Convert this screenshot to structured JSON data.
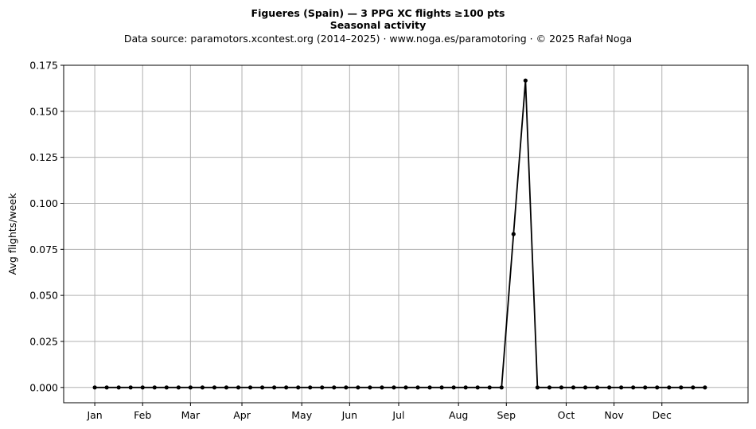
{
  "header": {
    "title": "Figueres (Spain)  —  3 PPG XC flights ≥100 pts",
    "subtitle": "Seasonal activity",
    "source": "Data source: paramotors.xcontest.org (2014–2025)  ·  www.noga.es/paramotoring  ·  © 2025 Rafał Noga"
  },
  "chart_data": {
    "type": "line",
    "title": "Figueres (Spain)  —  3 PPG XC flights ≥100 pts",
    "subtitle": "Seasonal activity",
    "xlabel": "",
    "ylabel": "Avg flights/week",
    "x_unit": "week of year",
    "x": [
      1,
      2,
      3,
      4,
      5,
      6,
      7,
      8,
      9,
      10,
      11,
      12,
      13,
      14,
      15,
      16,
      17,
      18,
      19,
      20,
      21,
      22,
      23,
      24,
      25,
      26,
      27,
      28,
      29,
      30,
      31,
      32,
      33,
      34,
      35,
      36,
      37,
      38,
      39,
      40,
      41,
      42,
      43,
      44,
      45,
      46,
      47,
      48,
      49,
      50,
      51,
      52
    ],
    "values": [
      0,
      0,
      0,
      0,
      0,
      0,
      0,
      0,
      0,
      0,
      0,
      0,
      0,
      0,
      0,
      0,
      0,
      0,
      0,
      0,
      0,
      0,
      0,
      0,
      0,
      0,
      0,
      0,
      0,
      0,
      0,
      0,
      0,
      0,
      0,
      0.0833,
      0.1667,
      0,
      0,
      0,
      0,
      0,
      0,
      0,
      0,
      0,
      0,
      0,
      0,
      0,
      0,
      0
    ],
    "xlim": [
      -1.6,
      55.6
    ],
    "ylim": [
      -0.0083,
      0.175
    ],
    "x_ticks": [
      {
        "week": 1,
        "label": "Jan"
      },
      {
        "week": 5,
        "label": "Feb"
      },
      {
        "week": 9,
        "label": "Mar"
      },
      {
        "week": 13.3,
        "label": "Apr"
      },
      {
        "week": 18.3,
        "label": "May"
      },
      {
        "week": 22.3,
        "label": "Jun"
      },
      {
        "week": 26.4,
        "label": "Jul"
      },
      {
        "week": 31.4,
        "label": "Aug"
      },
      {
        "week": 35.4,
        "label": "Sep"
      },
      {
        "week": 40.4,
        "label": "Oct"
      },
      {
        "week": 44.4,
        "label": "Nov"
      },
      {
        "week": 48.4,
        "label": "Dec"
      }
    ],
    "y_ticks": [
      {
        "value": 0.0,
        "label": "0.000"
      },
      {
        "value": 0.025,
        "label": "0.025"
      },
      {
        "value": 0.05,
        "label": "0.050"
      },
      {
        "value": 0.075,
        "label": "0.075"
      },
      {
        "value": 0.1,
        "label": "0.100"
      },
      {
        "value": 0.125,
        "label": "0.125"
      },
      {
        "value": 0.15,
        "label": "0.150"
      },
      {
        "value": 0.175,
        "label": "0.175"
      }
    ],
    "grid": true,
    "legend": "none",
    "colors": {
      "line": "#000000",
      "grid": "#b0b0b0",
      "axes": "#000000"
    }
  }
}
